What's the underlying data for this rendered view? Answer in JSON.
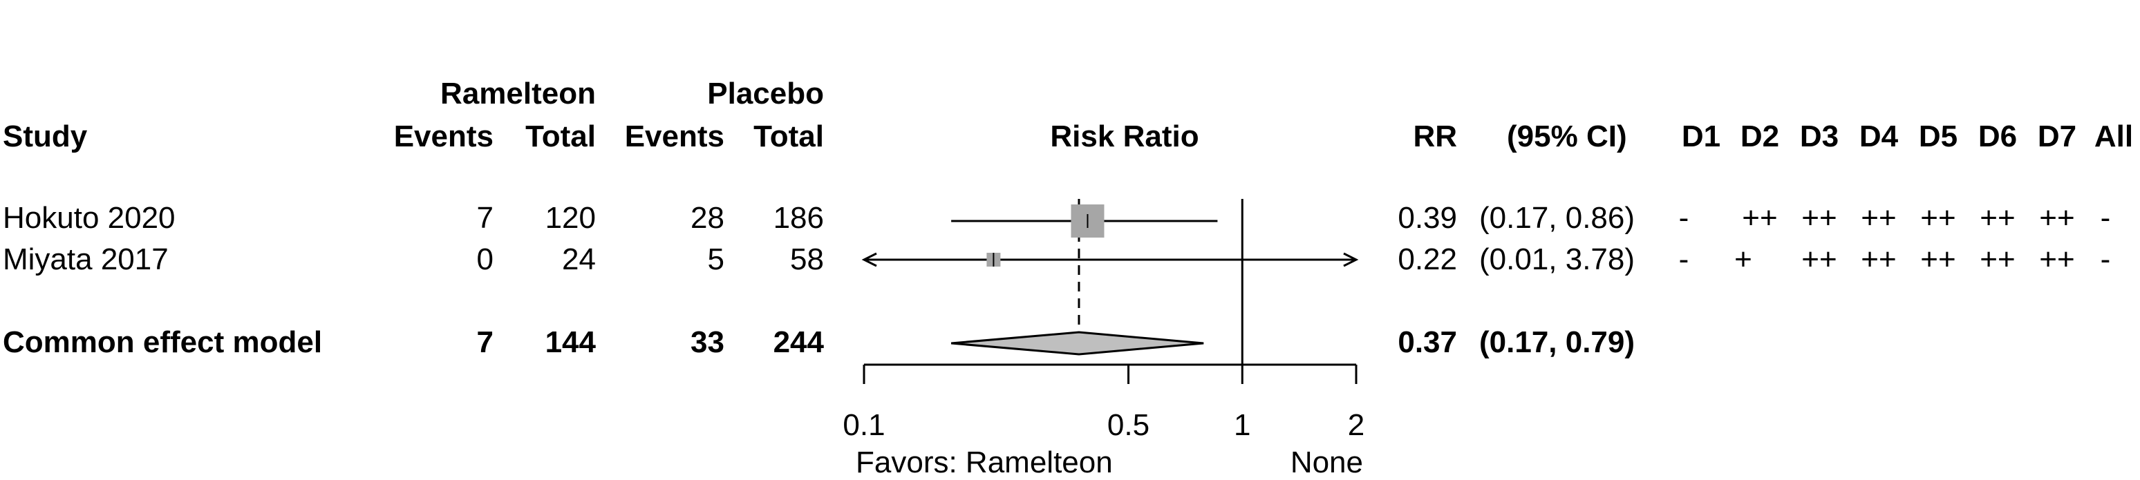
{
  "headers": {
    "study": "Study",
    "group1": "Ramelteon",
    "group2": "Placebo",
    "events": "Events",
    "total": "Total",
    "plot": "Risk Ratio",
    "rr": "RR",
    "ci": "(95% CI)",
    "domains": [
      "D1",
      "D2",
      "D3",
      "D4",
      "D5",
      "D6",
      "D7",
      "All"
    ]
  },
  "rows": [
    {
      "study": "Hokuto 2020",
      "e1": "7",
      "t1": "120",
      "e2": "28",
      "t2": "186",
      "rr_text": "0.39",
      "ci_text": "(0.17, 0.86)",
      "rob": [
        "-",
        "++",
        "++",
        "++",
        "++",
        "++",
        "++",
        "-"
      ]
    },
    {
      "study": "Miyata 2017",
      "e1": "0",
      "t1": "24",
      "e2": "5",
      "t2": "58",
      "rr_text": "0.22",
      "ci_text": "(0.01, 3.78)",
      "rob": [
        "-",
        "+",
        "++",
        "++",
        "++",
        "++",
        "++",
        "-"
      ]
    }
  ],
  "summary": {
    "label": "Common effect model",
    "e1": "7",
    "t1": "144",
    "e2": "33",
    "t2": "244",
    "rr_text": "0.37",
    "ci_text": "(0.17, 0.79)"
  },
  "axis": {
    "ticks": [
      "0.1",
      "0.5",
      "1",
      "2"
    ],
    "left_label": "Favors: Ramelteon",
    "right_label": "None"
  },
  "chart_data": {
    "type": "forest",
    "scale": "log",
    "xlim": [
      0.1,
      2
    ],
    "null_value": 1,
    "xticks": [
      0.1,
      0.5,
      1,
      2
    ],
    "studies": [
      {
        "name": "Hokuto 2020",
        "rr": 0.39,
        "lower": 0.17,
        "upper": 0.86,
        "weight": "large"
      },
      {
        "name": "Miyata 2017",
        "rr": 0.22,
        "lower": 0.01,
        "upper": 3.78,
        "weight": "small"
      }
    ],
    "pooled": {
      "name": "Common effect model",
      "rr": 0.37,
      "lower": 0.17,
      "upper": 0.79
    },
    "colors": {
      "marker": "#a6a6a6",
      "diamond": "#bfbfbf",
      "line": "#000000"
    }
  }
}
